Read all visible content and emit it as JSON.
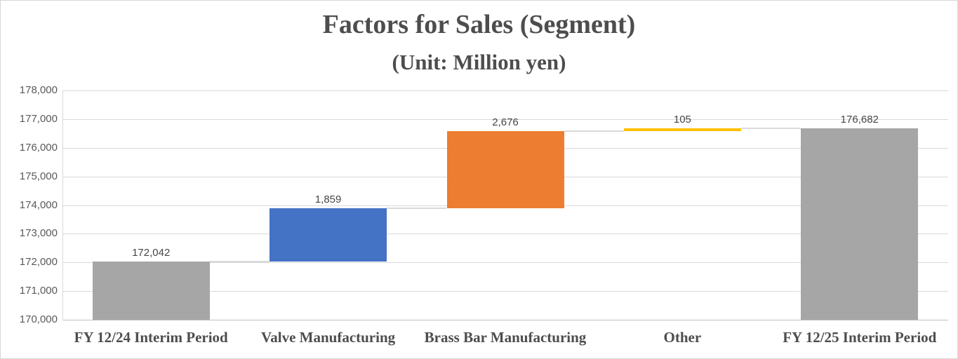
{
  "chart_data": {
    "type": "bar",
    "subtype": "waterfall",
    "title": "Factors for Sales (Segment)",
    "subtitle": "(Unit: Million yen)",
    "xlabel": "",
    "ylabel": "",
    "ylim": [
      170000,
      178000
    ],
    "ytick_step": 1000,
    "ytick_labels": [
      "170,000",
      "171,000",
      "172,000",
      "173,000",
      "174,000",
      "175,000",
      "176,000",
      "177,000",
      "178,000"
    ],
    "grid": true,
    "legend": "none",
    "categories": [
      "FY 12/24 Interim Period",
      "Valve Manufacturing",
      "Brass Bar Manufacturing",
      "Other",
      "FY 12/25 Interim Period"
    ],
    "bars": [
      {
        "category": "FY 12/24 Interim Period",
        "role": "total",
        "value": 172042,
        "label": "172,042",
        "start": 170000,
        "end": 172042,
        "color": "#a6a6a6"
      },
      {
        "category": "Valve Manufacturing",
        "role": "increase",
        "value": 1859,
        "label": "1,859",
        "start": 172042,
        "end": 173901,
        "color": "#4472c4"
      },
      {
        "category": "Brass Bar Manufacturing",
        "role": "increase",
        "value": 2676,
        "label": "2,676",
        "start": 173901,
        "end": 176577,
        "color": "#ed7d31"
      },
      {
        "category": "Other",
        "role": "increase",
        "value": 105,
        "label": "105",
        "start": 176577,
        "end": 176682,
        "color": "#ffc000"
      },
      {
        "category": "FY 12/25 Interim Period",
        "role": "total",
        "value": 176682,
        "label": "176,682",
        "start": 170000,
        "end": 176682,
        "color": "#a6a6a6"
      }
    ],
    "colors": {
      "total_bar": "#a6a6a6",
      "increase_bar_1": "#4472c4",
      "increase_bar_2": "#ed7d31",
      "increase_bar_3": "#ffc000",
      "gridline": "#d9d9d9",
      "axis_line": "#bfbfbf",
      "axis_text": "#595959",
      "title_text": "#4d4d4d",
      "data_label_text": "#464646"
    }
  }
}
